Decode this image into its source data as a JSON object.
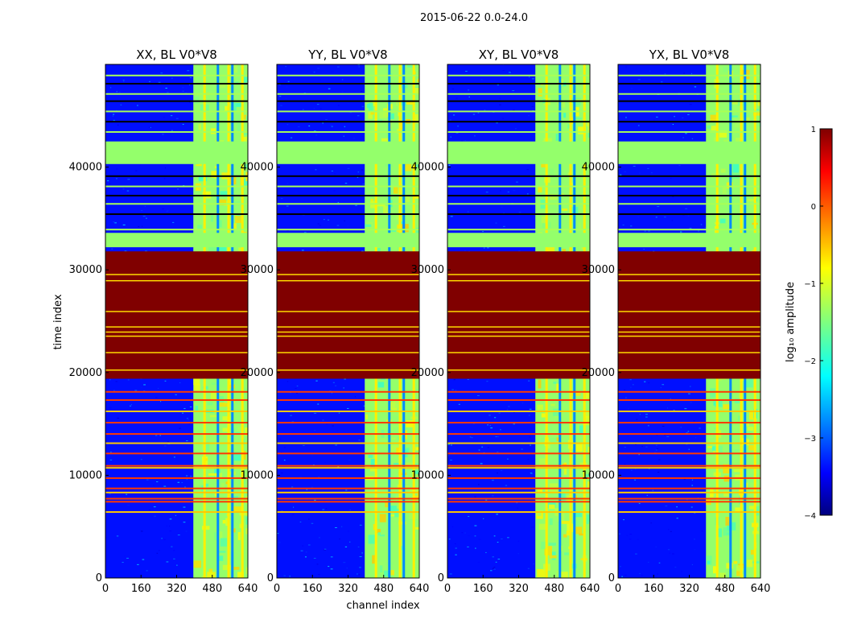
{
  "figure": {
    "suptitle": "2015-06-22 0.0-24.0"
  },
  "chart_data": {
    "type": "heatmap",
    "xlabel": "channel index",
    "ylabel": "time index",
    "xlim": [
      0,
      640
    ],
    "ylim": [
      0,
      50000
    ],
    "x_ticks": [
      "0",
      "160",
      "320",
      "480",
      "640"
    ],
    "y_ticks": [
      "0",
      "10000",
      "20000",
      "30000",
      "40000"
    ],
    "panels": [
      {
        "title": "XX, BL V0*V8"
      },
      {
        "title": "YY, BL V0*V8"
      },
      {
        "title": "XY, BL V0*V8"
      },
      {
        "title": "YX, BL V0*V8"
      }
    ],
    "colorbar": {
      "label": "log₁₀ amplitude",
      "range": [
        -4,
        1
      ],
      "ticks": [
        "1",
        "0",
        "−1",
        "−2",
        "−3",
        "−4"
      ],
      "colormap": "jet"
    },
    "regions": {
      "saturated_time_range": [
        19400,
        31800
      ],
      "saturated_log_amplitude": 1,
      "flagged_time_range": [
        32200,
        33600
      ],
      "flagged_log_amplitude": -1.4,
      "flagged_time_range_2": [
        40300,
        42500
      ],
      "background_log_amplitude": -3.3,
      "rfi_channel_range": [
        395,
        640
      ],
      "rfi_log_amplitude": -1.4
    }
  }
}
